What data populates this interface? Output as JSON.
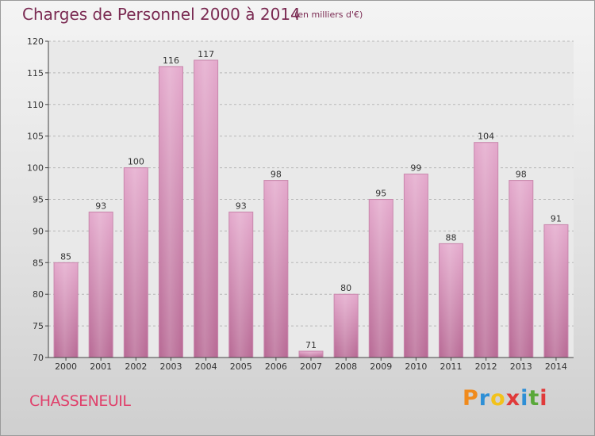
{
  "chart_data": {
    "type": "bar",
    "title": "Charges de Personnel 2000 à 2014",
    "subtitle": "(en milliers d'€)",
    "categories": [
      "2000",
      "2001",
      "2002",
      "2003",
      "2004",
      "2005",
      "2006",
      "2007",
      "2008",
      "2009",
      "2010",
      "2011",
      "2012",
      "2013",
      "2014"
    ],
    "values": [
      85,
      93,
      100,
      116,
      117,
      93,
      98,
      71,
      80,
      95,
      99,
      88,
      104,
      98,
      91
    ],
    "ylim": [
      70,
      120
    ],
    "yticks": [
      70,
      75,
      80,
      85,
      90,
      95,
      100,
      105,
      110,
      115,
      120
    ],
    "grid": true,
    "xlabel": "",
    "ylabel": "",
    "bar_color": "#dd9bc0"
  },
  "commune": "CHASSENEUIL",
  "logo": {
    "letters": [
      "P",
      "r",
      "o",
      "x",
      "i",
      "t",
      "i"
    ],
    "colors": [
      "#f08a1c",
      "#2e8fd6",
      "#f2c21b",
      "#e03a3a",
      "#2e8fd6",
      "#5aa83a",
      "#e03a3a"
    ]
  }
}
